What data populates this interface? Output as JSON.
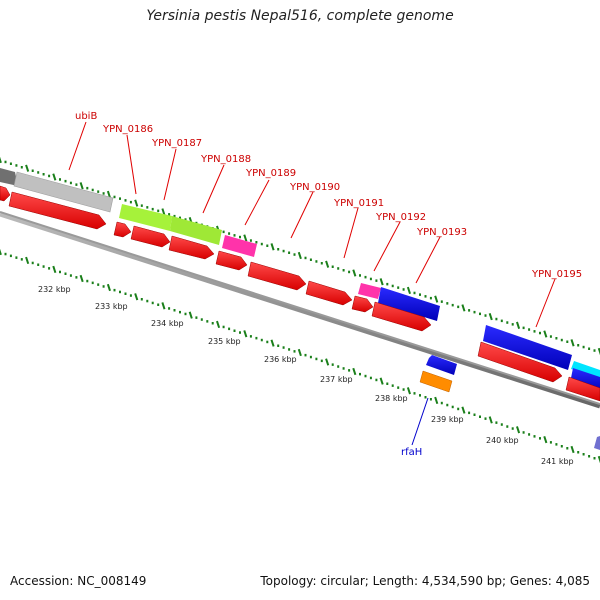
{
  "title": "Yersinia pestis Nepal516, complete genome",
  "accession": "Accession: NC_008149",
  "summary": "Topology: circular; Length: 4,534,590 bp; Genes: 4,085",
  "colors": {
    "cds_red": "#ff0000",
    "gray_dark": "#808080",
    "gray_light": "#c0c0c0",
    "lime": "#a6f23a",
    "magenta": "#ff33aa",
    "blue": "#0000dd",
    "orange": "#ff8c00",
    "cyan": "#00e5ff",
    "tick_green": "#1a7f1a",
    "label_red": "#cc0000",
    "label_blue": "#0000cc"
  },
  "gene_labels": [
    {
      "text": "ubiB",
      "color": "red"
    },
    {
      "text": "YPN_0186",
      "color": "red"
    },
    {
      "text": "YPN_0187",
      "color": "red"
    },
    {
      "text": "YPN_0188",
      "color": "red"
    },
    {
      "text": "YPN_0189",
      "color": "red"
    },
    {
      "text": "YPN_0190",
      "color": "red"
    },
    {
      "text": "YPN_0191",
      "color": "red"
    },
    {
      "text": "YPN_0192",
      "color": "red"
    },
    {
      "text": "YPN_0193",
      "color": "red"
    },
    {
      "text": "YPN_0195",
      "color": "red"
    },
    {
      "text": "rfaH",
      "color": "blue"
    }
  ],
  "kbp_labels": [
    "232 kbp",
    "233 kbp",
    "234 kbp",
    "235 kbp",
    "236 kbp",
    "237 kbp",
    "238 kbp",
    "239 kbp",
    "240 kbp",
    "241 kbp"
  ]
}
